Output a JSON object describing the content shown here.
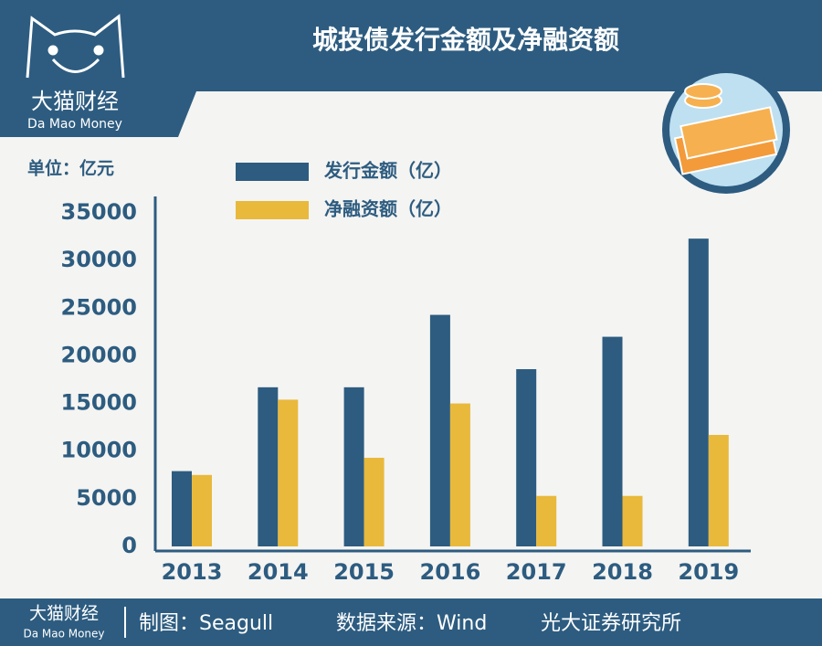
{
  "brand": {
    "name": "大猫财经",
    "sub": "Da Mao Money"
  },
  "chart_data": {
    "type": "bar",
    "title": "城投债发行金额及净融资额",
    "unit_label": "单位：亿元",
    "categories": [
      "2013",
      "2014",
      "2015",
      "2016",
      "2017",
      "2018",
      "2019"
    ],
    "series": [
      {
        "name": "发行金额（亿）",
        "color": "#2d5c80",
        "values": [
          7900,
          16700,
          16700,
          24300,
          18600,
          22000,
          32300
        ]
      },
      {
        "name": "净融资额（亿）",
        "color": "#e9b93c",
        "values": [
          7500,
          15400,
          9300,
          15000,
          5300,
          5300,
          11700
        ]
      }
    ],
    "ylim": [
      0,
      35000
    ],
    "yticks": [
      0,
      5000,
      10000,
      15000,
      20000,
      25000,
      30000,
      35000
    ],
    "grid": false
  },
  "footer": {
    "brand": "大猫财经",
    "brand_sub": "Da Mao Money",
    "maker": "制图：Seagull",
    "source": "数据来源：Wind",
    "institute": "光大证券研究所"
  }
}
